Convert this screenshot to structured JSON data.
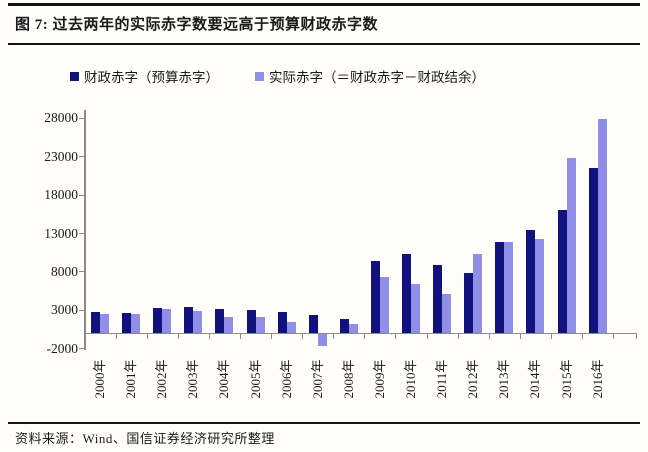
{
  "header": {
    "title": "图 7: 过去两年的实际赤字数要远高于预算财政赤字数"
  },
  "legend": {
    "items": [
      {
        "label": "财政赤字（预算赤字）",
        "color": "#12127E"
      },
      {
        "label": "实际赤字（＝财政赤字－财政结余）",
        "color": "#8F8FE8"
      }
    ]
  },
  "chart_data": {
    "type": "bar",
    "title": "图 7: 过去两年的实际赤字数要远高于预算财政赤字数",
    "categories": [
      "2000年",
      "2001年",
      "2002年",
      "2003年",
      "2004年",
      "2005年",
      "2006年",
      "2007年",
      "2008年",
      "2009年",
      "2010年",
      "2011年",
      "2012年",
      "2013年",
      "2014年",
      "2015年",
      "2016年"
    ],
    "series": [
      {
        "name": "财政赤字（预算赤字）",
        "color": "#12127E",
        "values": [
          2800,
          2700,
          3350,
          3400,
          3200,
          3000,
          2850,
          2450,
          1850,
          9400,
          10400,
          8850,
          7900,
          11900,
          13500,
          16100,
          21500
        ]
      },
      {
        "name": "实际赤字（＝财政赤字－财政结余）",
        "color": "#8F8FE8",
        "values": [
          2550,
          2500,
          3150,
          2900,
          2100,
          2200,
          1500,
          -1600,
          1200,
          7300,
          6450,
          5100,
          10400,
          11900,
          12300,
          22800,
          27900
        ]
      }
    ],
    "ylim": [
      -2000,
      28000
    ],
    "yticks": [
      28000,
      23000,
      18000,
      13000,
      8000,
      3000,
      -2000
    ],
    "ytick_labels": [
      "28000",
      "23000",
      "18000",
      "13000",
      "8000",
      "3000",
      "-2000"
    ],
    "xlabel": "",
    "ylabel": "",
    "grid": false,
    "legend_position": "top",
    "axis_color": "#8a8a8a"
  },
  "source": {
    "text": "资料来源：Wind、国信证券经济研究所整理"
  }
}
